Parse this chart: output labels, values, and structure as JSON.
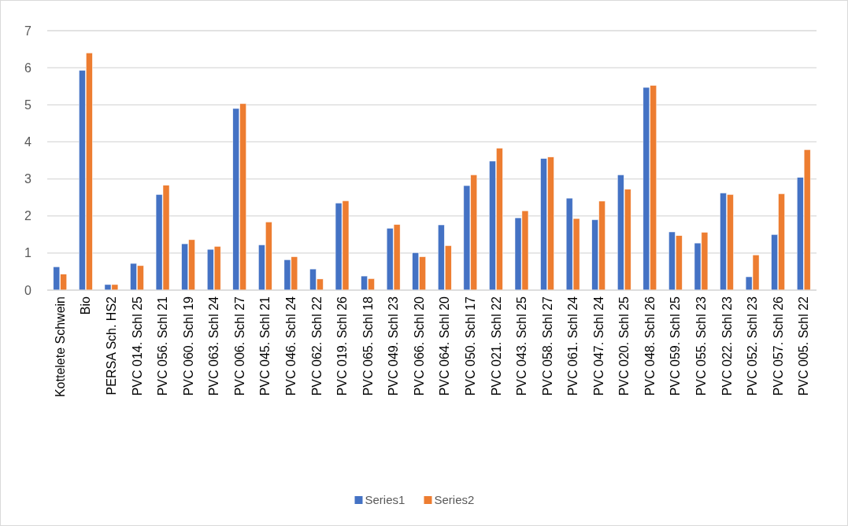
{
  "chart_data": {
    "type": "bar",
    "categories": [
      "Kottelete Schwein",
      "Bio",
      "PERSA Sch. HS2",
      "PVC 014. Schl 25",
      "PVC 056. Schl 21",
      "PVC 060. Schl 19",
      "PVC 063. Schl 24",
      "PVC 006. Schl 27",
      "PVC 045. Schl 21",
      "PVC 046. Schl 24",
      "PVC 062. Schl 22",
      "PVC 019. Schl 26",
      "PVC 065. Schl 18",
      "PVC 049. Schl 23",
      "PVC 066. Schl 20",
      "PVC 064. Schl 20",
      "PVC 050. Schl 17",
      "PVC 021. Schl 22",
      "PVC 043. Schl 25",
      "PVC 058. Schl 27",
      "PVC 061. Schl 24",
      "PVC 047. Schl 24",
      "PVC 020. Schl 25",
      "PVC 048. Schl 26",
      "PVC 059. Schl 25",
      "PVC 055. Schl 23",
      "PVC 022. Schl 23",
      "PVC 052. Schl 23",
      "PVC 057. Schl 26",
      "PVC 005. Schl 22"
    ],
    "series": [
      {
        "name": "Series1",
        "color": "#4472c4",
        "values": [
          0.63,
          5.93,
          0.15,
          0.72,
          2.58,
          1.25,
          1.1,
          4.9,
          1.22,
          0.82,
          0.57,
          2.35,
          0.38,
          1.67,
          1.01,
          1.76,
          2.82,
          3.48,
          1.95,
          3.55,
          2.48,
          1.9,
          3.11,
          5.47,
          1.57,
          1.27,
          2.62,
          0.36,
          1.5,
          3.04
        ]
      },
      {
        "name": "Series2",
        "color": "#ed7d31",
        "values": [
          0.43,
          6.4,
          0.15,
          0.66,
          2.83,
          1.36,
          1.18,
          5.03,
          1.84,
          0.9,
          0.3,
          2.41,
          0.31,
          1.77,
          0.9,
          1.2,
          3.11,
          3.83,
          2.14,
          3.59,
          1.93,
          2.4,
          2.72,
          5.52,
          1.47,
          1.56,
          2.58,
          0.95,
          2.6,
          3.79
        ]
      }
    ],
    "ylim": [
      0,
      7
    ],
    "yticks": [
      0,
      1,
      2,
      3,
      4,
      5,
      6,
      7
    ],
    "grid": "y",
    "legend": "bottom"
  }
}
